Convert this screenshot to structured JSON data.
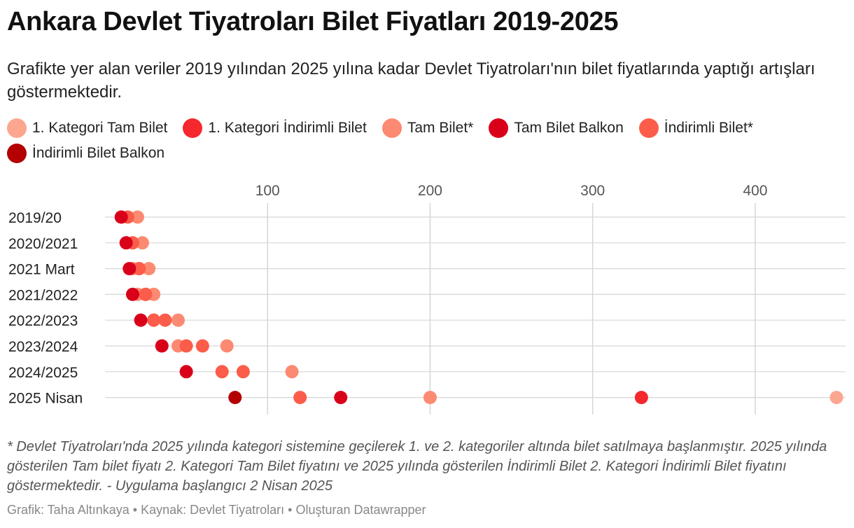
{
  "title": "Ankara Devlet Tiyatroları Bilet Fiyatları 2019-2025",
  "subtitle": "Grafikte yer alan veriler 2019 yılından 2025 yılına kadar Devlet Tiyatroları'nın bilet fiyatlarında yaptığı artışları göstermektedir.",
  "note": "* Devlet Tiyatroları'nda 2025 yılında kategori sistemine geçilerek 1. ve 2. kategoriler altında bilet satılmaya başlanmıştır. 2025 yılında gösterilen Tam bilet fiyatı 2. Kategori Tam Bilet fiyatını ve 2025 yılında gösterilen İndirimli Bilet 2. Kategori İndirimli Bilet fiyatını göstermektedir. - Uygulama başlangıcı 2 Nisan 2025",
  "footer": "Grafik: Taha Altınkaya • Kaynak: Devlet Tiyatroları • Oluşturan Datawrapper",
  "chart_data": {
    "type": "scatter",
    "title": "Ankara Devlet Tiyatroları Bilet Fiyatları 2019-2025",
    "categories": [
      "2019/20",
      "2020/2021",
      "2021 Mart",
      "2021/2022",
      "2022/2023",
      "2023/2024",
      "2024/2025",
      "2025 Nisan"
    ],
    "xlim": [
      0,
      450
    ],
    "xticks": [
      100,
      200,
      300,
      400
    ],
    "grid": true,
    "legend_position": "top",
    "series": [
      {
        "name": "1. Kategori Tam Bilet",
        "color": "#fca690",
        "values": [
          null,
          null,
          null,
          null,
          null,
          null,
          null,
          450
        ]
      },
      {
        "name": "1. Kategori İndirimli Bilet",
        "color": "#f5282d",
        "values": [
          null,
          null,
          null,
          null,
          null,
          null,
          null,
          330
        ]
      },
      {
        "name": "Tam Bilet*",
        "color": "#fc8a72",
        "values": [
          20,
          23,
          27,
          30,
          45,
          75,
          115,
          200
        ]
      },
      {
        "name": "Tam Bilet Balkon",
        "color": "#d9001a",
        "values": [
          10,
          13,
          15,
          17,
          22,
          35,
          50,
          145
        ]
      },
      {
        "name": "İndirimli Bilet*",
        "color": "#fc5d4a",
        "values": [
          14,
          17,
          21,
          25,
          30,
          50,
          72,
          120
        ]
      },
      {
        "name": "İndirimli Bilet Balkon",
        "color": "#b30000",
        "values": [
          null,
          null,
          null,
          null,
          null,
          null,
          null,
          80
        ]
      }
    ],
    "extra_points": [
      {
        "series": "Tam Bilet*",
        "category": "2021 Mart",
        "value": 17
      },
      {
        "series": "Tam Bilet*",
        "category": "2021/2022",
        "value": 20
      },
      {
        "series": "Tam Bilet*",
        "category": "2022/2023",
        "value": 30
      },
      {
        "series": "İndirimli Bilet*",
        "category": "2021 Mart",
        "value": 21
      },
      {
        "series": "İndirimli Bilet*",
        "category": "2021/2022",
        "value": 25
      },
      {
        "series": "İndirimli Bilet*",
        "category": "2022/2023",
        "value": 37
      },
      {
        "series": "Tam Bilet*",
        "category": "2023/2024",
        "value": 45
      },
      {
        "series": "İndirimli Bilet*",
        "category": "2024/2025",
        "value": 85
      },
      {
        "series": "İndirimli Bilet*",
        "category": "2023/2024",
        "value": 60
      }
    ]
  }
}
